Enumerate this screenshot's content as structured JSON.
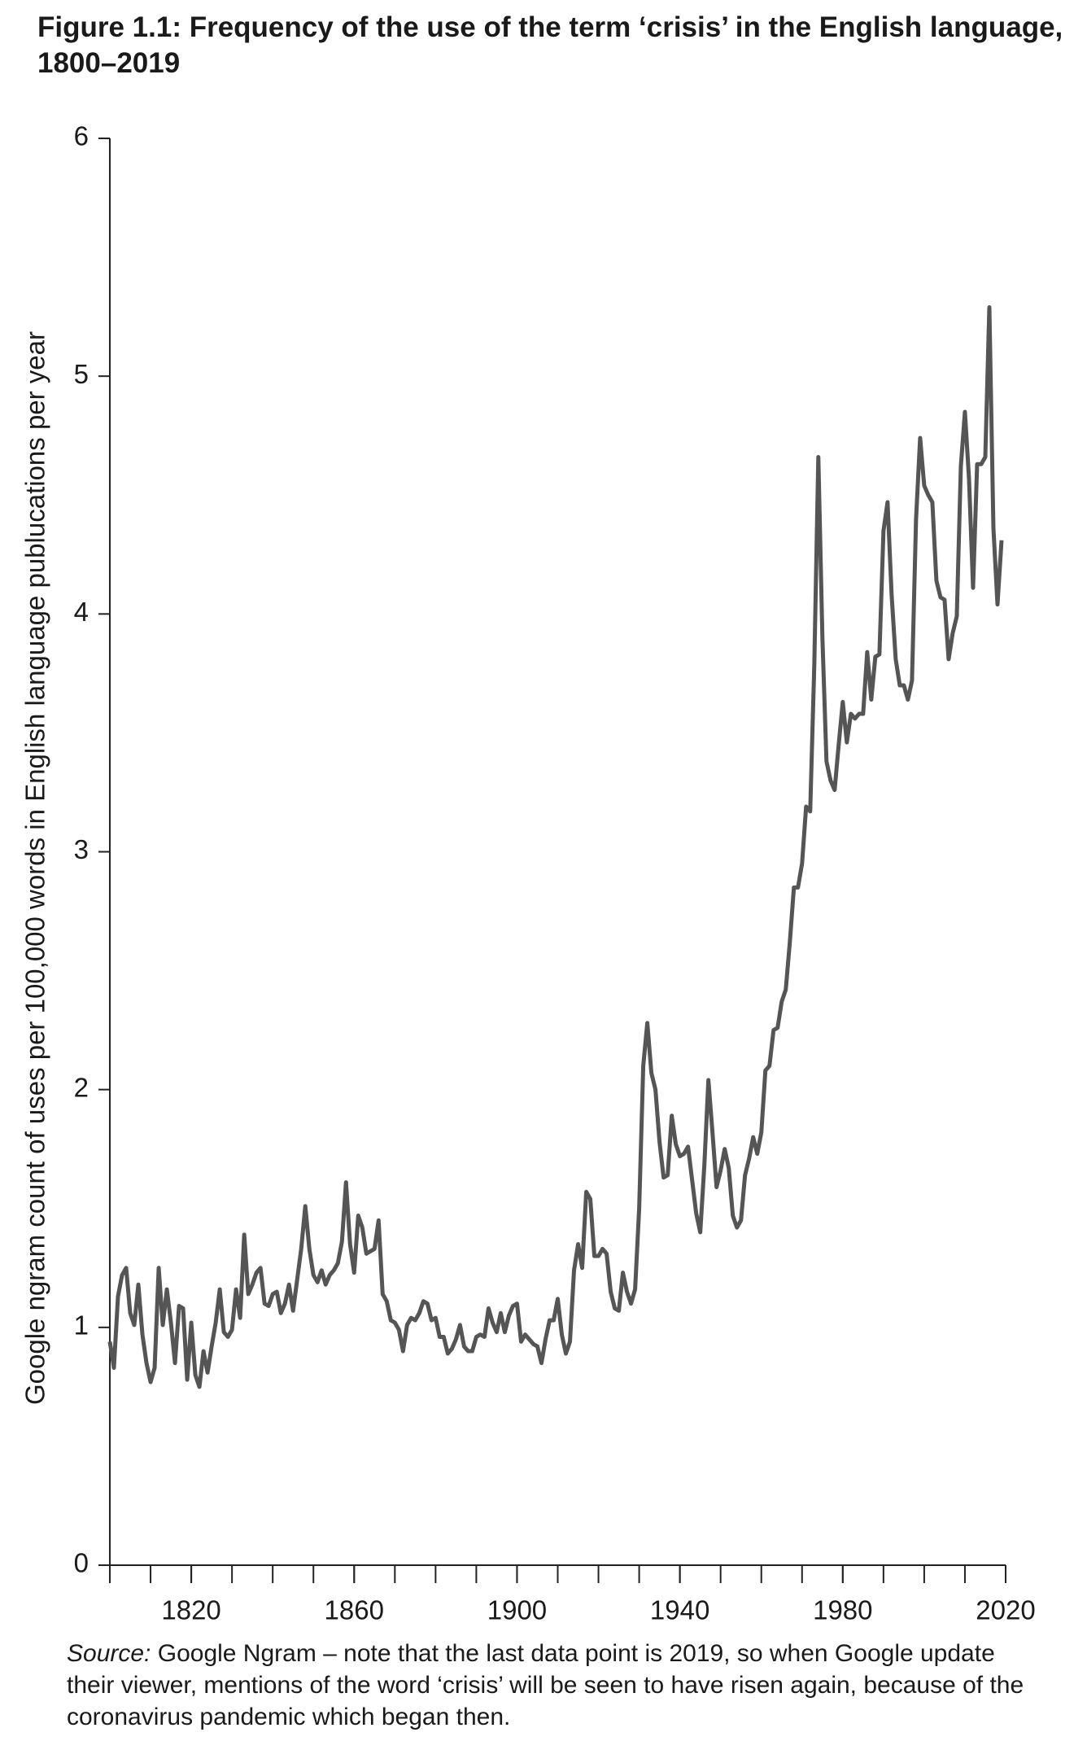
{
  "chart_data": {
    "type": "line",
    "title": "Figure 1.1: Frequency of the use of the term ‘crisis’ in the English language, 1800–2019",
    "y_label": "Google ngram count of uses per 100,000 words in English language publucations per year",
    "source_label": "Source:",
    "source_text": "Google Ngram – note that the last data point is 2019, so when Google update their viewer, mentions of the word ‘crisis’ will be seen to have risen again, because of the coronavirus pandemic which began then.",
    "xlim": [
      1800,
      2020
    ],
    "ylim": [
      0,
      6
    ],
    "xticks": [
      1820,
      1860,
      1900,
      1940,
      1980,
      2020
    ],
    "xminor_ticks": [
      1800,
      1810,
      1820,
      1830,
      1840,
      1850,
      1860,
      1870,
      1880,
      1890,
      1900,
      1910,
      1920,
      1930,
      1940,
      1950,
      1960,
      1970,
      1980,
      1990,
      2000,
      2010,
      2020
    ],
    "yticks": [
      0,
      1,
      2,
      3,
      4,
      5,
      6
    ],
    "x": [
      1800,
      1801,
      1802,
      1803,
      1804,
      1805,
      1806,
      1807,
      1808,
      1809,
      1810,
      1811,
      1812,
      1813,
      1814,
      1815,
      1816,
      1817,
      1818,
      1819,
      1820,
      1821,
      1822,
      1823,
      1824,
      1825,
      1826,
      1827,
      1828,
      1829,
      1830,
      1831,
      1832,
      1833,
      1834,
      1835,
      1836,
      1837,
      1838,
      1839,
      1840,
      1841,
      1842,
      1843,
      1844,
      1845,
      1846,
      1847,
      1848,
      1849,
      1850,
      1851,
      1852,
      1853,
      1854,
      1855,
      1856,
      1857,
      1858,
      1859,
      1860,
      1861,
      1862,
      1863,
      1864,
      1865,
      1866,
      1867,
      1868,
      1869,
      1870,
      1871,
      1872,
      1873,
      1874,
      1875,
      1876,
      1877,
      1878,
      1879,
      1880,
      1881,
      1882,
      1883,
      1884,
      1885,
      1886,
      1887,
      1888,
      1889,
      1890,
      1891,
      1892,
      1893,
      1894,
      1895,
      1896,
      1897,
      1898,
      1899,
      1900,
      1901,
      1902,
      1903,
      1904,
      1905,
      1906,
      1907,
      1908,
      1909,
      1910,
      1911,
      1912,
      1913,
      1914,
      1915,
      1916,
      1917,
      1918,
      1919,
      1920,
      1921,
      1922,
      1923,
      1924,
      1925,
      1926,
      1927,
      1928,
      1929,
      1930,
      1931,
      1932,
      1933,
      1934,
      1935,
      1936,
      1937,
      1938,
      1939,
      1940,
      1941,
      1942,
      1943,
      1944,
      1945,
      1946,
      1947,
      1948,
      1949,
      1950,
      1951,
      1952,
      1953,
      1954,
      1955,
      1956,
      1957,
      1958,
      1959,
      1960,
      1961,
      1962,
      1963,
      1964,
      1965,
      1966,
      1967,
      1968,
      1969,
      1970,
      1971,
      1972,
      1973,
      1974,
      1975,
      1976,
      1977,
      1978,
      1979,
      1980,
      1981,
      1982,
      1983,
      1984,
      1985,
      1986,
      1987,
      1988,
      1989,
      1990,
      1991,
      1992,
      1993,
      1994,
      1995,
      1996,
      1997,
      1998,
      1999,
      2000,
      2001,
      2002,
      2003,
      2004,
      2005,
      2006,
      2007,
      2008,
      2009,
      2010,
      2011,
      2012,
      2013,
      2014,
      2015,
      2016,
      2017,
      2018,
      2019
    ],
    "values": [
      0.94,
      0.83,
      1.13,
      1.22,
      1.25,
      1.06,
      1.01,
      1.18,
      0.97,
      0.85,
      0.77,
      0.83,
      1.25,
      1.01,
      1.16,
      1.02,
      0.85,
      1.09,
      1.08,
      0.78,
      1.02,
      0.8,
      0.75,
      0.9,
      0.81,
      0.92,
      1.02,
      1.16,
      0.98,
      0.96,
      0.99,
      1.16,
      1.04,
      1.39,
      1.14,
      1.18,
      1.23,
      1.25,
      1.1,
      1.09,
      1.14,
      1.15,
      1.06,
      1.1,
      1.18,
      1.07,
      1.2,
      1.33,
      1.51,
      1.33,
      1.22,
      1.19,
      1.24,
      1.18,
      1.22,
      1.24,
      1.27,
      1.36,
      1.61,
      1.35,
      1.23,
      1.47,
      1.42,
      1.31,
      1.32,
      1.33,
      1.45,
      1.14,
      1.11,
      1.03,
      1.02,
      0.99,
      0.9,
      1.01,
      1.04,
      1.03,
      1.06,
      1.11,
      1.1,
      1.03,
      1.04,
      0.96,
      0.96,
      0.89,
      0.91,
      0.95,
      1.01,
      0.92,
      0.9,
      0.9,
      0.96,
      0.97,
      0.96,
      1.08,
      1.02,
      0.98,
      1.06,
      0.98,
      1.05,
      1.09,
      1.1,
      0.94,
      0.97,
      0.95,
      0.93,
      0.92,
      0.85,
      0.95,
      1.03,
      1.03,
      1.12,
      0.97,
      0.89,
      0.94,
      1.24,
      1.35,
      1.25,
      1.57,
      1.54,
      1.3,
      1.3,
      1.33,
      1.31,
      1.15,
      1.08,
      1.07,
      1.23,
      1.15,
      1.1,
      1.16,
      1.5,
      2.1,
      2.28,
      2.07,
      2.0,
      1.78,
      1.63,
      1.64,
      1.89,
      1.77,
      1.72,
      1.73,
      1.76,
      1.62,
      1.48,
      1.4,
      1.68,
      2.04,
      1.82,
      1.59,
      1.66,
      1.75,
      1.67,
      1.47,
      1.42,
      1.45,
      1.64,
      1.71,
      1.8,
      1.73,
      1.82,
      2.08,
      2.1,
      2.25,
      2.26,
      2.37,
      2.42,
      2.62,
      2.85,
      2.85,
      2.95,
      3.19,
      3.17,
      3.78,
      4.66,
      3.9,
      3.38,
      3.3,
      3.26,
      3.45,
      3.63,
      3.46,
      3.58,
      3.56,
      3.58,
      3.58,
      3.84,
      3.64,
      3.82,
      3.83,
      4.35,
      4.47,
      4.08,
      3.81,
      3.7,
      3.7,
      3.64,
      3.72,
      4.4,
      4.74,
      4.54,
      4.5,
      4.47,
      4.14,
      4.07,
      4.06,
      3.81,
      3.92,
      3.99,
      4.62,
      4.85,
      4.57,
      4.11,
      4.63,
      4.63,
      4.66,
      5.29,
      4.36,
      4.04,
      4.31
    ],
    "color": "#555555"
  }
}
